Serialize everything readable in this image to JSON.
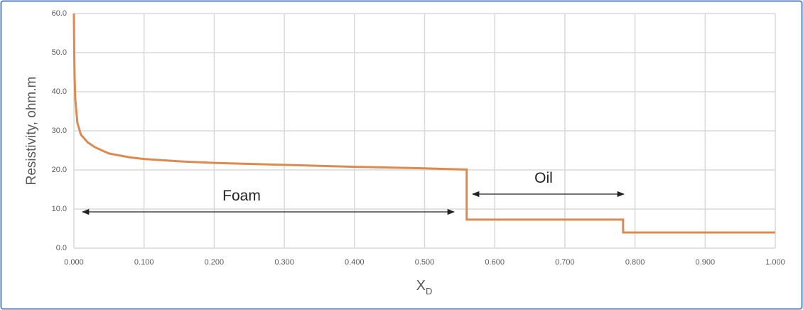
{
  "chart_data": {
    "type": "line",
    "y_label": "Resistivity, ohm.m",
    "x_label": "X",
    "x_label_sub": "D",
    "annotations": [
      "Foam",
      "Oil"
    ],
    "x": [
      0,
      0.0005,
      0.001,
      0.002,
      0.005,
      0.01,
      0.02,
      0.03,
      0.05,
      0.08,
      0.1,
      0.15,
      0.2,
      0.3,
      0.4,
      0.5,
      0.56,
      0.56,
      0.783,
      0.783,
      1.0
    ],
    "series": [
      {
        "color": "#dc8a50",
        "values": [
          60,
          50,
          44,
          38,
          32,
          29,
          27,
          25.8,
          24.2,
          23.2,
          22.8,
          22.2,
          21.8,
          21.3,
          20.8,
          20.4,
          20.1,
          7.3,
          7.3,
          4,
          4
        ]
      }
    ],
    "xlim": [
      0,
      1
    ],
    "ylim": [
      0,
      60
    ],
    "xticks": [
      {
        "value": 0,
        "label": "0.000"
      },
      {
        "value": 0.1,
        "label": "0.100"
      },
      {
        "value": 0.2,
        "label": "0.200"
      },
      {
        "value": 0.3,
        "label": "0.300"
      },
      {
        "value": 0.4,
        "label": "0.400"
      },
      {
        "value": 0.5,
        "label": "0.500"
      },
      {
        "value": 0.6,
        "label": "0.600"
      },
      {
        "value": 0.7,
        "label": "0.700"
      },
      {
        "value": 0.8,
        "label": "0.800"
      },
      {
        "value": 0.9,
        "label": "0.900"
      },
      {
        "value": 1,
        "label": "1.000"
      }
    ],
    "yticks": [
      {
        "value": 0,
        "label": "0.0"
      },
      {
        "value": 10,
        "label": "10.0"
      },
      {
        "value": 20,
        "label": "20.0"
      },
      {
        "value": 30,
        "label": "30.0"
      },
      {
        "value": 40,
        "label": "40.0"
      },
      {
        "value": 50,
        "label": "50.0"
      },
      {
        "value": 60,
        "label": "60.0"
      }
    ],
    "grid": true
  }
}
